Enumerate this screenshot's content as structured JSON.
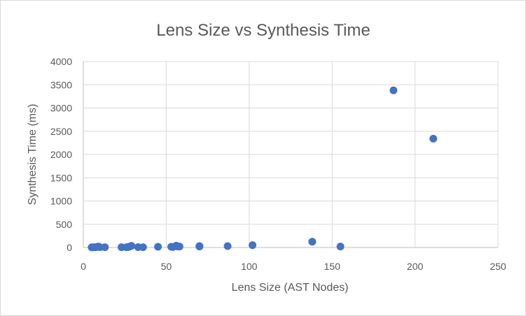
{
  "chart_data": {
    "type": "scatter",
    "title": "Lens Size vs Synthesis Time",
    "xlabel": "Lens Size (AST Nodes)",
    "ylabel": "Synthesis Time (ms)",
    "xlim": [
      0,
      250
    ],
    "ylim": [
      0,
      4000
    ],
    "x_ticks": [
      0,
      50,
      100,
      150,
      200,
      250
    ],
    "y_ticks": [
      0,
      500,
      1000,
      1500,
      2000,
      2500,
      3000,
      3500,
      4000
    ],
    "grid": true,
    "legend": "none",
    "color": "#4472c4",
    "series": [
      {
        "points": [
          {
            "x": 5,
            "y": 3
          },
          {
            "x": 6,
            "y": 5
          },
          {
            "x": 7,
            "y": 4
          },
          {
            "x": 8,
            "y": 10
          },
          {
            "x": 9,
            "y": 20
          },
          {
            "x": 10,
            "y": 8
          },
          {
            "x": 13,
            "y": 5
          },
          {
            "x": 23,
            "y": 5
          },
          {
            "x": 26,
            "y": 5
          },
          {
            "x": 27,
            "y": 10
          },
          {
            "x": 28,
            "y": 20
          },
          {
            "x": 29,
            "y": 35
          },
          {
            "x": 33,
            "y": 8
          },
          {
            "x": 36,
            "y": 5
          },
          {
            "x": 45,
            "y": 15
          },
          {
            "x": 53,
            "y": 15
          },
          {
            "x": 54,
            "y": 10
          },
          {
            "x": 56,
            "y": 40
          },
          {
            "x": 57,
            "y": 20
          },
          {
            "x": 58,
            "y": 20
          },
          {
            "x": 70,
            "y": 30
          },
          {
            "x": 70,
            "y": 20
          },
          {
            "x": 87,
            "y": 30
          },
          {
            "x": 102,
            "y": 50
          },
          {
            "x": 138,
            "y": 125
          },
          {
            "x": 155,
            "y": 20
          },
          {
            "x": 187,
            "y": 3380
          },
          {
            "x": 211,
            "y": 2340
          }
        ]
      }
    ]
  }
}
